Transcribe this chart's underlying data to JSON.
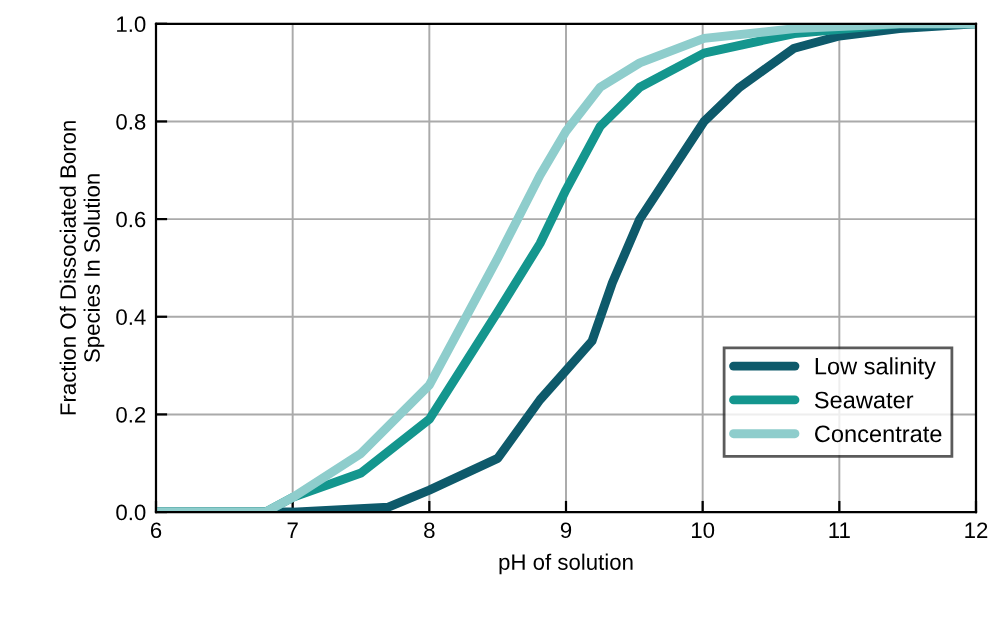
{
  "chart_data": {
    "type": "line",
    "xlabel": "pH of solution",
    "ylabel": "Fraction Of Dissociated Boron\nSpecies In Solution",
    "xlim": [
      6,
      12
    ],
    "ylim": [
      0,
      1
    ],
    "xticks": [
      6,
      7,
      8,
      9,
      10,
      11,
      12
    ],
    "yticks": [
      {
        "value": 0,
        "label": "0.0"
      },
      {
        "value": 0.2,
        "label": "0.2"
      },
      {
        "value": 0.4,
        "label": "0.4"
      },
      {
        "value": 0.6,
        "label": "0.6"
      },
      {
        "value": 0.8,
        "label": "0.8"
      },
      {
        "value": 1,
        "label": "1.0"
      }
    ],
    "grid": true,
    "legend": "bottom right",
    "marker": "none",
    "line_style": "solid",
    "series": [
      {
        "name": "Low salinity",
        "color": "#0e5a6b",
        "x": [
          6,
          7,
          7.7,
          8,
          8.5,
          8.81,
          9,
          9.19,
          9.34,
          9.54,
          10.01,
          10.27,
          10.67,
          11.0,
          11.44,
          12
        ],
        "values": [
          0,
          0,
          0.01,
          0.045,
          0.11,
          0.23,
          0.29,
          0.35,
          0.47,
          0.6,
          0.8,
          0.87,
          0.95,
          0.975,
          0.99,
          1.0
        ]
      },
      {
        "name": "Seawater",
        "color": "#14968e",
        "x": [
          6,
          6.8,
          7,
          7.5,
          8,
          8.5,
          8.81,
          9,
          9.25,
          9.54,
          10.01,
          10.67,
          11.44,
          12
        ],
        "values": [
          0,
          0,
          0.03,
          0.08,
          0.19,
          0.41,
          0.55,
          0.66,
          0.79,
          0.87,
          0.94,
          0.98,
          1.0,
          1.0
        ]
      },
      {
        "name": "Concentrate",
        "color": "#8ecdcc",
        "x": [
          6,
          6.8,
          7,
          7.5,
          8,
          8.5,
          8.81,
          9,
          9.25,
          9.54,
          10.01,
          10.67,
          11.44,
          12
        ],
        "values": [
          0,
          0,
          0.03,
          0.12,
          0.26,
          0.52,
          0.69,
          0.78,
          0.87,
          0.92,
          0.97,
          0.99,
          1.0,
          1.0
        ]
      }
    ]
  }
}
